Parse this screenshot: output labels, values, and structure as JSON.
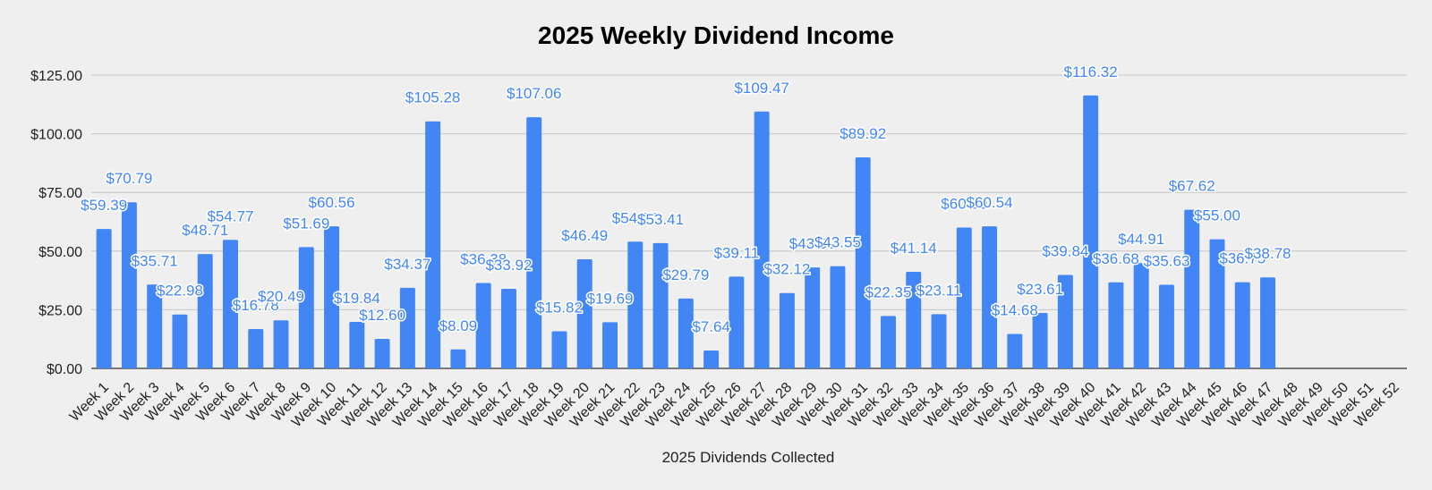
{
  "chart_data": {
    "type": "bar",
    "title": "2025 Weekly Dividend Income",
    "xlabel": "2025 Dividends Collected",
    "ylabel": "",
    "ylim": [
      0,
      125
    ],
    "y_ticks": [
      "$0.00",
      "$25.00",
      "$50.00",
      "$75.00",
      "$100.00",
      "$125.00"
    ],
    "y_tick_values": [
      0,
      25,
      50,
      75,
      100,
      125
    ],
    "grid": true,
    "legend": "none",
    "bar_color": "#4285f4",
    "label_color": "#4285f4",
    "categories": [
      "Week 1",
      "Week 2",
      "Week 3",
      "Week 4",
      "Week 5",
      "Week 6",
      "Week 7",
      "Week 8",
      "Week 9",
      "Week 10",
      "Week 11",
      "Week 12",
      "Week 13",
      "Week 14",
      "Week 15",
      "Week 16",
      "Week 17",
      "Week 18",
      "Week 19",
      "Week 20",
      "Week 21",
      "Week 22",
      "Week 23",
      "Week 24",
      "Week 25",
      "Week 26",
      "Week 27",
      "Week 28",
      "Week 29",
      "Week 30",
      "Week 31",
      "Week 32",
      "Week 33",
      "Week 34",
      "Week 35",
      "Week 36",
      "Week 37",
      "Week 38",
      "Week 39",
      "Week 40",
      "Week 41",
      "Week 42",
      "Week 43",
      "Week 44",
      "Week 45",
      "Week 46",
      "Week 47",
      "Week 48",
      "Week 49",
      "Week 50",
      "Week 51",
      "Week 52"
    ],
    "values": [
      59.39,
      70.79,
      35.71,
      22.98,
      48.71,
      54.77,
      16.78,
      20.49,
      51.69,
      60.56,
      19.84,
      12.6,
      34.37,
      105.28,
      8.09,
      36.38,
      33.92,
      107.06,
      15.82,
      46.49,
      19.69,
      54.0,
      53.41,
      29.79,
      7.64,
      39.11,
      109.47,
      32.12,
      43.0,
      43.55,
      89.92,
      22.35,
      41.14,
      23.11,
      60.0,
      60.54,
      14.68,
      23.61,
      39.84,
      116.32,
      36.68,
      44.91,
      35.63,
      67.62,
      55.0,
      36.75,
      38.78,
      null,
      null,
      null,
      null,
      null
    ],
    "data_labels": [
      "$59.39",
      "$70.79",
      "$35.71",
      "$22.98",
      "$48.71",
      "$54.77",
      "$16.78",
      "$20.49",
      "$51.69",
      "$60.56",
      "$19.84",
      "$12.60",
      "$34.37",
      "$105.28",
      "$8.09",
      "$36.38",
      "$33.92",
      "$107.06",
      "$15.82",
      "$46.49",
      "$19.69",
      "$54.00",
      "$53.41",
      "$29.79",
      "$7.64",
      "$39.11",
      "$109.47",
      "$32.12",
      "$43.00",
      "$43.55",
      "$89.92",
      "$22.35",
      "$41.14",
      "$23.11",
      "$60.00",
      "$60.54",
      "$14.68",
      "$23.61",
      "$39.84",
      "$116.32",
      "$36.68",
      "$44.91",
      "$35.63",
      "$67.62",
      "$55.00",
      "$36.75",
      "$38.78",
      null,
      null,
      null,
      null,
      null
    ]
  }
}
